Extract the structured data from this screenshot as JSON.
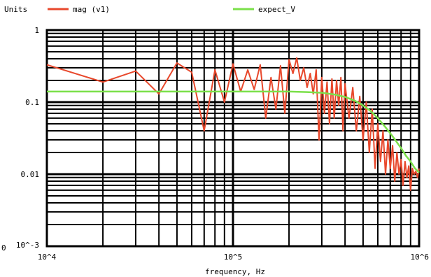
{
  "chart_data": {
    "type": "line",
    "xscale": "log",
    "yscale": "log",
    "xlim": [
      10000,
      1000000
    ],
    "ylim": [
      0.001,
      1
    ],
    "grid": true,
    "legend_placement": "top",
    "yunits_label": "Units",
    "xlabel": "frequency, Hz",
    "x_ticks": [
      {
        "value": 10000,
        "label": "10^4"
      },
      {
        "value": 100000,
        "label": "10^5"
      },
      {
        "value": 1000000,
        "label": "10^6"
      }
    ],
    "y_ticks": [
      {
        "value": 1,
        "label": "1"
      },
      {
        "value": 0.1,
        "label": "0.1"
      },
      {
        "value": 0.01,
        "label": "0.01"
      },
      {
        "value": 0.001,
        "label": "10^-3"
      }
    ],
    "corner_label": "0",
    "series": [
      {
        "name": "mag (v1)",
        "color": "#e8482c",
        "x": [
          10000,
          20000,
          30000,
          40000,
          50000,
          60000,
          70000,
          80000,
          90000,
          100000,
          110000,
          120000,
          130000,
          140000,
          150000,
          160000,
          170000,
          180000,
          190000,
          200000,
          210000,
          220000,
          230000,
          240000,
          250000,
          260000,
          270000,
          280000,
          290000,
          300000,
          310000,
          320000,
          330000,
          340000,
          350000,
          360000,
          370000,
          380000,
          390000,
          400000,
          420000,
          440000,
          460000,
          480000,
          500000,
          520000,
          540000,
          560000,
          580000,
          600000,
          620000,
          640000,
          660000,
          680000,
          700000,
          720000,
          740000,
          760000,
          780000,
          800000,
          820000,
          840000,
          860000,
          880000,
          900000,
          920000,
          940000,
          960000,
          980000,
          1000000
        ],
        "values": [
          0.33,
          0.19,
          0.27,
          0.13,
          0.35,
          0.26,
          0.04,
          0.28,
          0.1,
          0.34,
          0.14,
          0.28,
          0.15,
          0.33,
          0.06,
          0.22,
          0.08,
          0.32,
          0.07,
          0.39,
          0.25,
          0.41,
          0.2,
          0.3,
          0.16,
          0.25,
          0.13,
          0.28,
          0.03,
          0.22,
          0.07,
          0.19,
          0.05,
          0.21,
          0.06,
          0.2,
          0.09,
          0.22,
          0.04,
          0.18,
          0.06,
          0.16,
          0.04,
          0.12,
          0.03,
          0.1,
          0.02,
          0.08,
          0.012,
          0.05,
          0.015,
          0.04,
          0.01,
          0.03,
          0.012,
          0.025,
          0.008,
          0.02,
          0.01,
          0.016,
          0.007,
          0.015,
          0.009,
          0.013,
          0.006,
          0.012,
          0.01,
          0.011,
          0.009,
          0.012
        ]
      },
      {
        "name": "expect_V",
        "color": "#7be04a",
        "x": [
          10000,
          50000,
          100000,
          150000,
          200000,
          250000,
          300000,
          350000,
          400000,
          450000,
          500000,
          550000,
          600000,
          650000,
          700000,
          750000,
          800000,
          850000,
          900000,
          950000,
          1000000
        ],
        "values": [
          0.14,
          0.14,
          0.14,
          0.14,
          0.14,
          0.138,
          0.135,
          0.128,
          0.118,
          0.105,
          0.09,
          0.075,
          0.06,
          0.047,
          0.037,
          0.029,
          0.023,
          0.018,
          0.015,
          0.012,
          0.0105
        ]
      }
    ]
  }
}
